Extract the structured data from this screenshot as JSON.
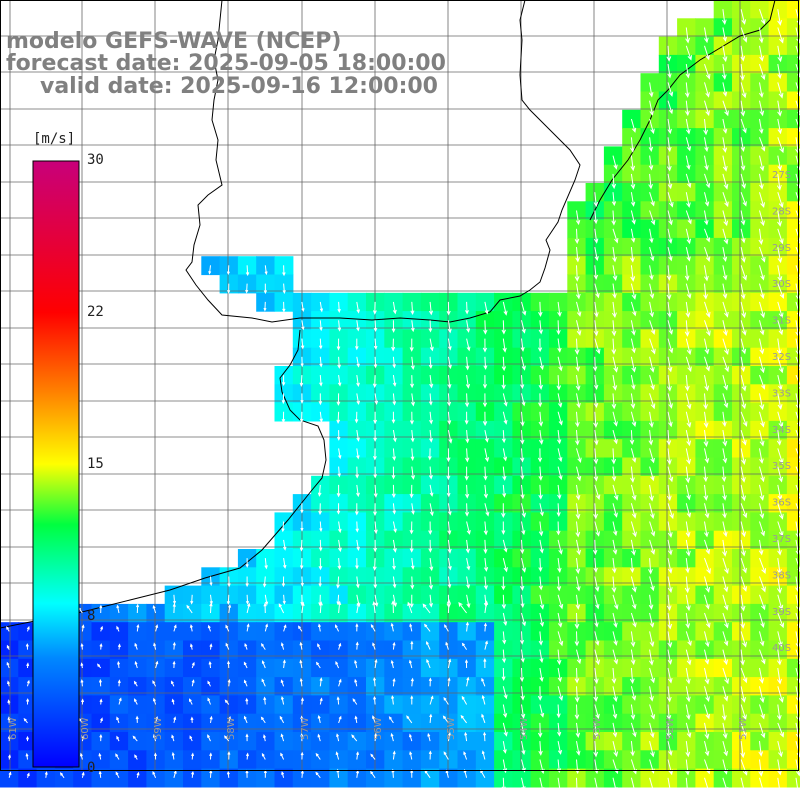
{
  "title": {
    "line1": "modelo GEFS-WAVE (NCEP)",
    "line2": "forecast date: 2025-09-05 18:00:00",
    "line3": "valid date: 2025-09-16 12:00:00"
  },
  "colorbar": {
    "unit": "[m/s]",
    "ticks": [
      "30",
      "22",
      "15",
      "8",
      "0"
    ],
    "range": [
      0,
      30
    ]
  },
  "grid": {
    "lon_labels": [
      "61W",
      "60W",
      "59W",
      "58W",
      "57W",
      "56W",
      "55W",
      "54W",
      "53W",
      "52W",
      "51W"
    ],
    "lat_labels": [
      "27S",
      "28S",
      "29S",
      "30S",
      "31S",
      "32S",
      "33S",
      "34S",
      "35S",
      "36S",
      "37S",
      "38S",
      "39S",
      "40S"
    ]
  },
  "colors": {
    "land": "#ffffff",
    "grid_line": "#666666",
    "coast": "#000000",
    "arrow": "#ffffff",
    "title": "#808080"
  }
}
